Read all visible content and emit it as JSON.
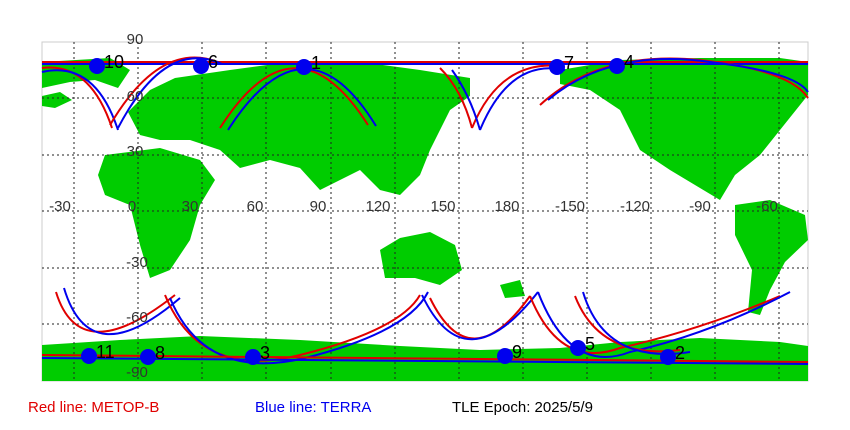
{
  "map": {
    "lon_labels": [
      "-30",
      "0",
      "30",
      "60",
      "90",
      "120",
      "150",
      "180",
      "-150",
      "-120",
      "-90",
      "-60"
    ],
    "lat_labels": [
      "90",
      "60",
      "30",
      "-30",
      "-60",
      "-90"
    ],
    "satellites": [
      "1",
      "2",
      "3",
      "4",
      "5",
      "6",
      "7",
      "8",
      "9",
      "10",
      "11"
    ],
    "legend": {
      "red": "Red line: METOP-B",
      "blue": "Blue line: TERRA",
      "epoch": "TLE Epoch: 2025/5/9"
    }
  }
}
